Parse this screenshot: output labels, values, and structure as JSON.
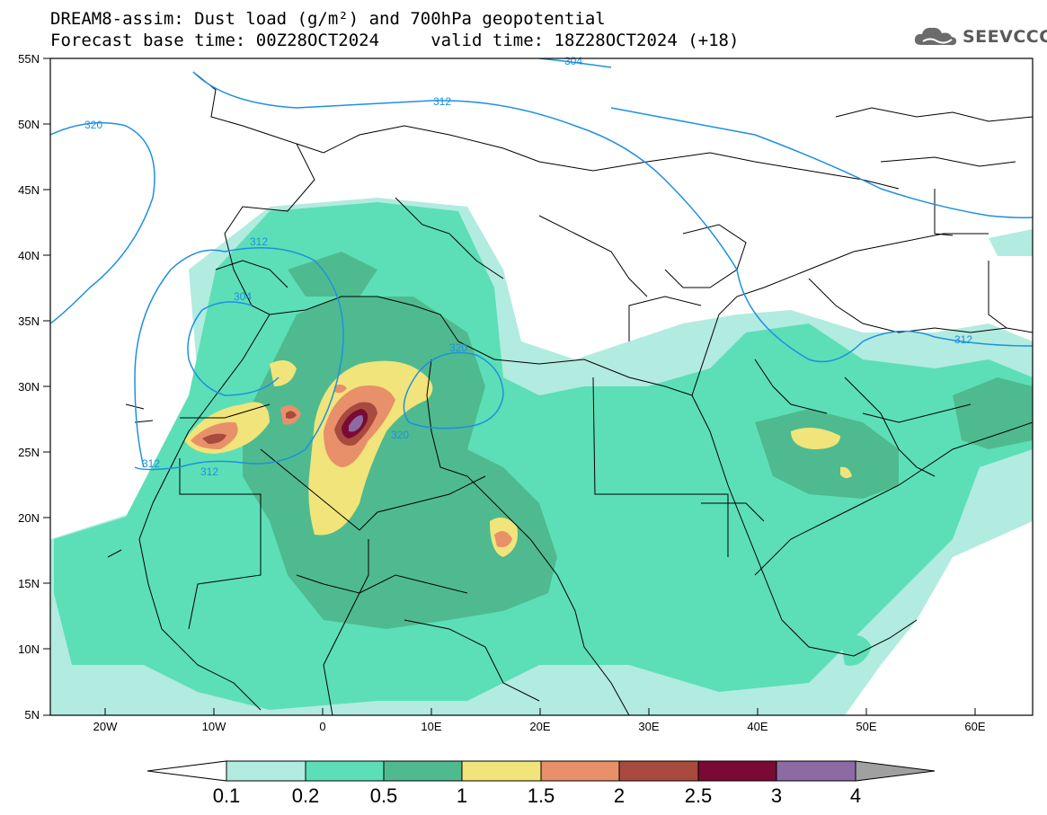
{
  "title": {
    "line1": "DREAM8-assim: Dust load (g/m²) and 700hPa geopotential",
    "line2": "Forecast base time: 00Z28OCT2024     valid time: 18Z28OCT2024 (+18)"
  },
  "logo": {
    "text": "SEEVCCC",
    "icon": "cloud-icon"
  },
  "axes": {
    "lat_labels": [
      "55N",
      "50N",
      "45N",
      "40N",
      "35N",
      "30N",
      "25N",
      "20N",
      "15N",
      "10N",
      "5N"
    ],
    "lon_labels": [
      "20W",
      "10W",
      "0",
      "10E",
      "20E",
      "30E",
      "40E",
      "50E",
      "60E"
    ]
  },
  "contour_labels": [
    "304",
    "312",
    "320",
    "312",
    "312",
    "304",
    "320",
    "320",
    "312",
    "312",
    "312"
  ],
  "colorbar": {
    "tick_labels": [
      "0.1",
      "0.2",
      "0.5",
      "1",
      "1.5",
      "2",
      "2.5",
      "3",
      "4"
    ],
    "colors": [
      "#ffffff",
      "#b2ebe0",
      "#5cdfb6",
      "#4fba8f",
      "#f1e47a",
      "#e8906a",
      "#a84a3e",
      "#7a0a33",
      "#8c6ba4",
      "#a0a0a0"
    ]
  },
  "colors": {
    "contour": "#1e90e0",
    "border": "#000000"
  }
}
